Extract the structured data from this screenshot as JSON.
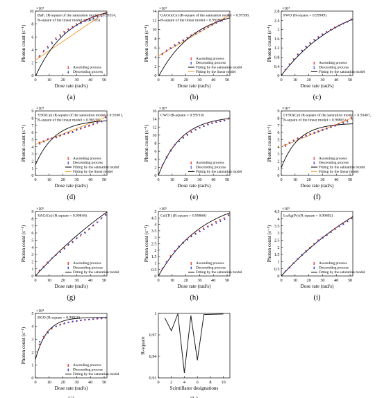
{
  "figure": {
    "common": {
      "xlabel": "Dose rate (rad/s)",
      "ylabel": "Photon count (s⁻¹)",
      "xticks": [
        0,
        10,
        20,
        30,
        40,
        50
      ],
      "xlim": [
        0,
        52
      ],
      "labels": {
        "asc": "Ascending process",
        "desc": "Descending process",
        "sat": "Fitting by the saturation model",
        "lin": "Fitting by the linear model"
      },
      "colors": {
        "asc": "#e0211c",
        "desc": "#2f3fcf",
        "sat": "#000000",
        "lin": "#f2a23a",
        "k_line": "#1a1a1a"
      },
      "x": [
        3,
        6,
        9,
        12,
        15,
        18,
        21,
        24,
        27,
        30,
        33,
        36,
        39,
        42,
        45,
        48,
        51
      ]
    }
  },
  "chart_data": [
    {
      "id": "a",
      "panel_label": "(a)",
      "type": "scatter",
      "exp": "×10⁴",
      "ann": [
        "BaF₂ (R-square of the saturation model = 0.99354,",
        "R-square of the linear model = 0.97585)"
      ],
      "ylim": [
        0,
        10
      ],
      "yticks": [
        0,
        2,
        4,
        6,
        8,
        10
      ],
      "legend": [
        "asc",
        "desc"
      ],
      "series": [
        {
          "role": "asc",
          "values": [
            2.9,
            3.7,
            4.5,
            5.2,
            5.8,
            6.3,
            6.8,
            7.2,
            7.6,
            8.0,
            8.3,
            8.6,
            8.8,
            9.1,
            9.3,
            9.5,
            9.6
          ]
        },
        {
          "role": "desc",
          "values": [
            3.1,
            3.9,
            4.3,
            5.0,
            5.6,
            6.1,
            6.6,
            7.0,
            7.4,
            7.8,
            8.1,
            8.4,
            8.6,
            8.9,
            9.1,
            9.2,
            9.6
          ]
        }
      ],
      "sat": {
        "A": 11.0,
        "k": 0.042,
        "x0": 0.3
      },
      "lin": {
        "a": 2.4,
        "b": 0.145
      }
    },
    {
      "id": "b",
      "panel_label": "(b)",
      "type": "scatter",
      "exp": "×10⁴",
      "ann": [
        "GAGG(Ce) (R-square of the saturation model = 0.97580,",
        "R-square of the linear model = 0.99383)"
      ],
      "ylim": [
        0,
        14
      ],
      "yticks": [
        0,
        2,
        4,
        6,
        8,
        10,
        12,
        14
      ],
      "legend": [
        "asc",
        "desc",
        "sat",
        "lin"
      ],
      "series": [
        {
          "role": "asc",
          "values": [
            4.6,
            5.3,
            6.0,
            6.7,
            7.2,
            7.7,
            8.3,
            8.8,
            9.3,
            9.8,
            10.2,
            10.7,
            11.1,
            11.6,
            12.0,
            12.4,
            13.3
          ]
        },
        {
          "role": "desc",
          "values": [
            4.8,
            5.5,
            5.9,
            6.5,
            7.1,
            7.6,
            8.1,
            8.7,
            9.1,
            9.6,
            10.1,
            10.5,
            11.0,
            11.4,
            11.8,
            12.2,
            13.0
          ]
        }
      ],
      "sat": {
        "A": 14.6,
        "k": 0.038,
        "x0": 0.5
      },
      "lin": {
        "a": 4.3,
        "b": 0.17
      }
    },
    {
      "id": "c",
      "panel_label": "(c)",
      "type": "scatter",
      "exp": "×10⁴",
      "ann": [
        "PWO (R-square = 0.99949)"
      ],
      "ylim": [
        0,
        2.8
      ],
      "yticks": [
        0,
        0.4,
        0.8,
        1.2,
        1.6,
        2.0,
        2.4,
        2.8
      ],
      "legend": [
        "asc",
        "desc",
        "sat"
      ],
      "series": [
        {
          "role": "asc",
          "values": [
            0.25,
            0.5,
            0.72,
            0.93,
            1.1,
            1.27,
            1.42,
            1.56,
            1.68,
            1.8,
            1.9,
            2.0,
            2.1,
            2.18,
            2.27,
            2.35,
            2.45
          ]
        },
        {
          "role": "desc",
          "values": [
            0.27,
            0.48,
            0.7,
            0.9,
            1.08,
            1.24,
            1.4,
            1.54,
            1.66,
            1.78,
            1.88,
            1.98,
            2.07,
            2.16,
            2.25,
            2.33,
            2.42
          ]
        }
      ],
      "sat": {
        "A": 3.6,
        "k": 0.022,
        "x0": 0
      }
    },
    {
      "id": "d",
      "panel_label": "(d)",
      "type": "scatter",
      "exp": "×10⁴",
      "ann": [
        "YSO(Ce) (R-square of the saturation model = 0.91681,",
        "R-square of the linear model = 0.98539)"
      ],
      "ylim": [
        0,
        9
      ],
      "yticks": [
        0,
        1,
        2,
        3,
        4,
        5,
        6,
        7,
        8,
        9
      ],
      "legend": [
        "asc",
        "desc",
        "sat",
        "lin"
      ],
      "series": [
        {
          "role": "asc",
          "values": [
            4.6,
            4.8,
            5.0,
            5.2,
            5.4,
            5.5,
            5.7,
            5.9,
            6.1,
            6.3,
            6.5,
            6.7,
            6.9,
            7.1,
            7.3,
            7.6,
            8.3
          ]
        },
        {
          "role": "desc",
          "values": [
            4.4,
            4.7,
            5.1,
            5.1,
            5.3,
            5.6,
            5.8,
            6.0,
            6.0,
            6.4,
            6.6,
            6.8,
            7.0,
            7.2,
            7.4,
            7.5,
            8.1
          ]
        }
      ],
      "sat": {
        "A": 7.8,
        "k": 0.07,
        "x0": -3
      },
      "lin": {
        "a": 4.3,
        "b": 0.075
      }
    },
    {
      "id": "e",
      "panel_label": "(e)",
      "type": "scatter",
      "exp": "×10⁴",
      "ann": [
        "CWO (R-square = 0.99710)"
      ],
      "ylim": [
        0,
        16
      ],
      "yticks": [
        0,
        2,
        4,
        6,
        8,
        10,
        12,
        14,
        16
      ],
      "legend": [
        "asc",
        "desc",
        "sat"
      ],
      "series": [
        {
          "role": "asc",
          "values": [
            2.5,
            4.6,
            6.3,
            7.5,
            8.6,
            9.5,
            10.2,
            10.9,
            11.4,
            11.9,
            12.3,
            12.7,
            13.0,
            13.3,
            13.5,
            13.7,
            14.0
          ]
        },
        {
          "role": "desc",
          "values": [
            2.7,
            4.4,
            6.1,
            7.7,
            8.4,
            9.3,
            10.0,
            10.7,
            11.3,
            11.8,
            12.2,
            12.6,
            12.9,
            13.2,
            13.4,
            13.6,
            14.2
          ]
        }
      ],
      "sat": {
        "A": 14.8,
        "k": 0.06,
        "x0": 0
      }
    },
    {
      "id": "f",
      "panel_label": "(f)",
      "type": "scatter",
      "exp": "×10⁴",
      "ann": [
        "LYSO(Ce) (R-square of the saturation model = 0.93467,",
        "R-square of the linear model = 0.98865)"
      ],
      "ylim": [
        0,
        9
      ],
      "yticks": [
        0,
        1,
        2,
        3,
        4,
        5,
        6,
        7,
        8,
        9
      ],
      "legend": [
        "asc",
        "desc",
        "sat",
        "lin"
      ],
      "series": [
        {
          "role": "asc",
          "values": [
            4.3,
            4.6,
            4.9,
            5.2,
            5.4,
            5.6,
            5.8,
            6.0,
            6.2,
            6.4,
            6.6,
            6.8,
            7.0,
            7.2,
            7.4,
            7.7,
            8.1
          ]
        },
        {
          "role": "desc",
          "values": [
            4.1,
            4.5,
            4.8,
            5.1,
            5.3,
            5.5,
            5.7,
            5.9,
            6.1,
            6.3,
            6.5,
            6.7,
            6.9,
            7.1,
            7.3,
            7.5,
            7.9
          ]
        }
      ],
      "sat": {
        "A": 7.3,
        "k": 0.08,
        "x0": -2
      },
      "lin": {
        "a": 4.0,
        "b": 0.078
      }
    },
    {
      "id": "g",
      "panel_label": "(g)",
      "type": "scatter",
      "exp": "×10⁵",
      "ann": [
        "YAG(Ce) (R-square = 0.99848)"
      ],
      "ylim": [
        0,
        9
      ],
      "yticks": [
        0,
        1,
        2,
        3,
        4,
        5,
        6,
        7,
        8,
        9
      ],
      "legend": [
        "asc",
        "desc",
        "sat"
      ],
      "series": [
        {
          "role": "asc",
          "values": [
            0.7,
            1.3,
            1.9,
            2.4,
            2.9,
            3.4,
            3.9,
            4.3,
            4.8,
            5.2,
            5.6,
            6.1,
            6.5,
            7.0,
            7.5,
            8.0,
            8.6
          ]
        },
        {
          "role": "desc",
          "values": [
            0.8,
            1.2,
            1.8,
            2.5,
            3.0,
            3.3,
            3.8,
            4.4,
            4.7,
            5.3,
            5.8,
            6.0,
            6.6,
            7.1,
            7.5,
            8.1,
            8.5
          ]
        }
      ],
      "sat": {
        "A": 25.0,
        "k": 0.0085,
        "x0": 0
      }
    },
    {
      "id": "h",
      "panel_label": "(h)",
      "type": "scatter",
      "exp": "×10⁵",
      "ann": [
        "CsI(Tl) (R-square = 0.99868)"
      ],
      "ylim": [
        0,
        5
      ],
      "yticks": [
        0,
        0.5,
        1,
        1.5,
        2,
        2.5,
        3,
        3.5,
        4,
        4.5,
        5
      ],
      "legend": [
        "asc",
        "desc",
        "sat"
      ],
      "series": [
        {
          "role": "asc",
          "values": [
            0.55,
            1.1,
            1.55,
            1.95,
            2.3,
            2.6,
            2.85,
            3.1,
            3.3,
            3.5,
            3.7,
            3.85,
            4.0,
            4.2,
            4.35,
            4.5,
            4.75
          ]
        },
        {
          "role": "desc",
          "values": [
            0.6,
            1.05,
            1.5,
            1.9,
            2.25,
            2.55,
            2.8,
            3.05,
            3.25,
            3.45,
            3.6,
            3.8,
            3.95,
            4.1,
            4.25,
            4.4,
            4.7
          ]
        }
      ],
      "sat": {
        "A": 6.2,
        "k": 0.03,
        "x0": 0
      }
    },
    {
      "id": "i",
      "panel_label": "(i)",
      "type": "scatter",
      "exp": "×10⁵",
      "ann": [
        "LuAg(Pr) (R-square = 0.99892)"
      ],
      "ylim": [
        0,
        4.5
      ],
      "yticks": [
        0,
        0.5,
        1,
        1.5,
        2,
        2.5,
        3,
        3.5,
        4,
        4.5
      ],
      "legend": [
        "asc",
        "desc",
        "sat"
      ],
      "series": [
        {
          "role": "asc",
          "values": [
            0.3,
            0.6,
            0.9,
            1.2,
            1.5,
            1.75,
            2.0,
            2.25,
            2.5,
            2.7,
            2.9,
            3.1,
            3.3,
            3.5,
            3.65,
            3.85,
            4.05
          ]
        },
        {
          "role": "desc",
          "values": [
            0.35,
            0.58,
            0.88,
            1.18,
            1.45,
            1.7,
            1.95,
            2.2,
            2.45,
            2.65,
            2.85,
            3.05,
            3.25,
            3.45,
            3.6,
            3.8,
            4.0
          ]
        }
      ],
      "sat": {
        "A": 9.5,
        "k": 0.011,
        "x0": 0
      }
    },
    {
      "id": "j",
      "panel_label": "(j)",
      "type": "scatter",
      "exp": "×10⁴",
      "ann": [
        "BGO (R-square = 0.99916)"
      ],
      "ylim": [
        0,
        5
      ],
      "yticks": [
        0,
        1,
        2,
        3,
        4,
        5
      ],
      "legend": [
        "asc",
        "desc",
        "sat"
      ],
      "series": [
        {
          "role": "asc",
          "values": [
            2.6,
            3.2,
            3.6,
            3.8,
            4.0,
            4.1,
            4.2,
            4.3,
            4.35,
            4.4,
            4.45,
            4.5,
            4.52,
            4.55,
            4.58,
            4.6,
            4.65
          ]
        },
        {
          "role": "desc",
          "values": [
            2.8,
            3.1,
            3.5,
            3.9,
            4.0,
            4.15,
            4.25,
            4.3,
            4.38,
            4.42,
            4.47,
            4.5,
            4.53,
            4.56,
            4.6,
            4.62,
            4.67
          ]
        }
      ],
      "sat": {
        "A": 4.7,
        "k": 0.12,
        "x0": -3
      }
    },
    {
      "id": "k",
      "panel_label": "(k)",
      "type": "line",
      "xlabel": "Scintillator designations",
      "ylabel": "R-square",
      "x": [
        1,
        2,
        3,
        4,
        5,
        6,
        7,
        8,
        9,
        10
      ],
      "values": [
        0.99354,
        0.9758,
        0.99949,
        0.91681,
        0.9971,
        0.93467,
        0.99848,
        0.99868,
        0.99892,
        0.99916
      ],
      "xlim": [
        0,
        11
      ],
      "ylim": [
        0.91,
        1.0
      ],
      "xticks": [
        0,
        2,
        4,
        6,
        8,
        10
      ],
      "yticks": [
        0.91,
        0.94,
        0.97,
        1
      ]
    }
  ]
}
